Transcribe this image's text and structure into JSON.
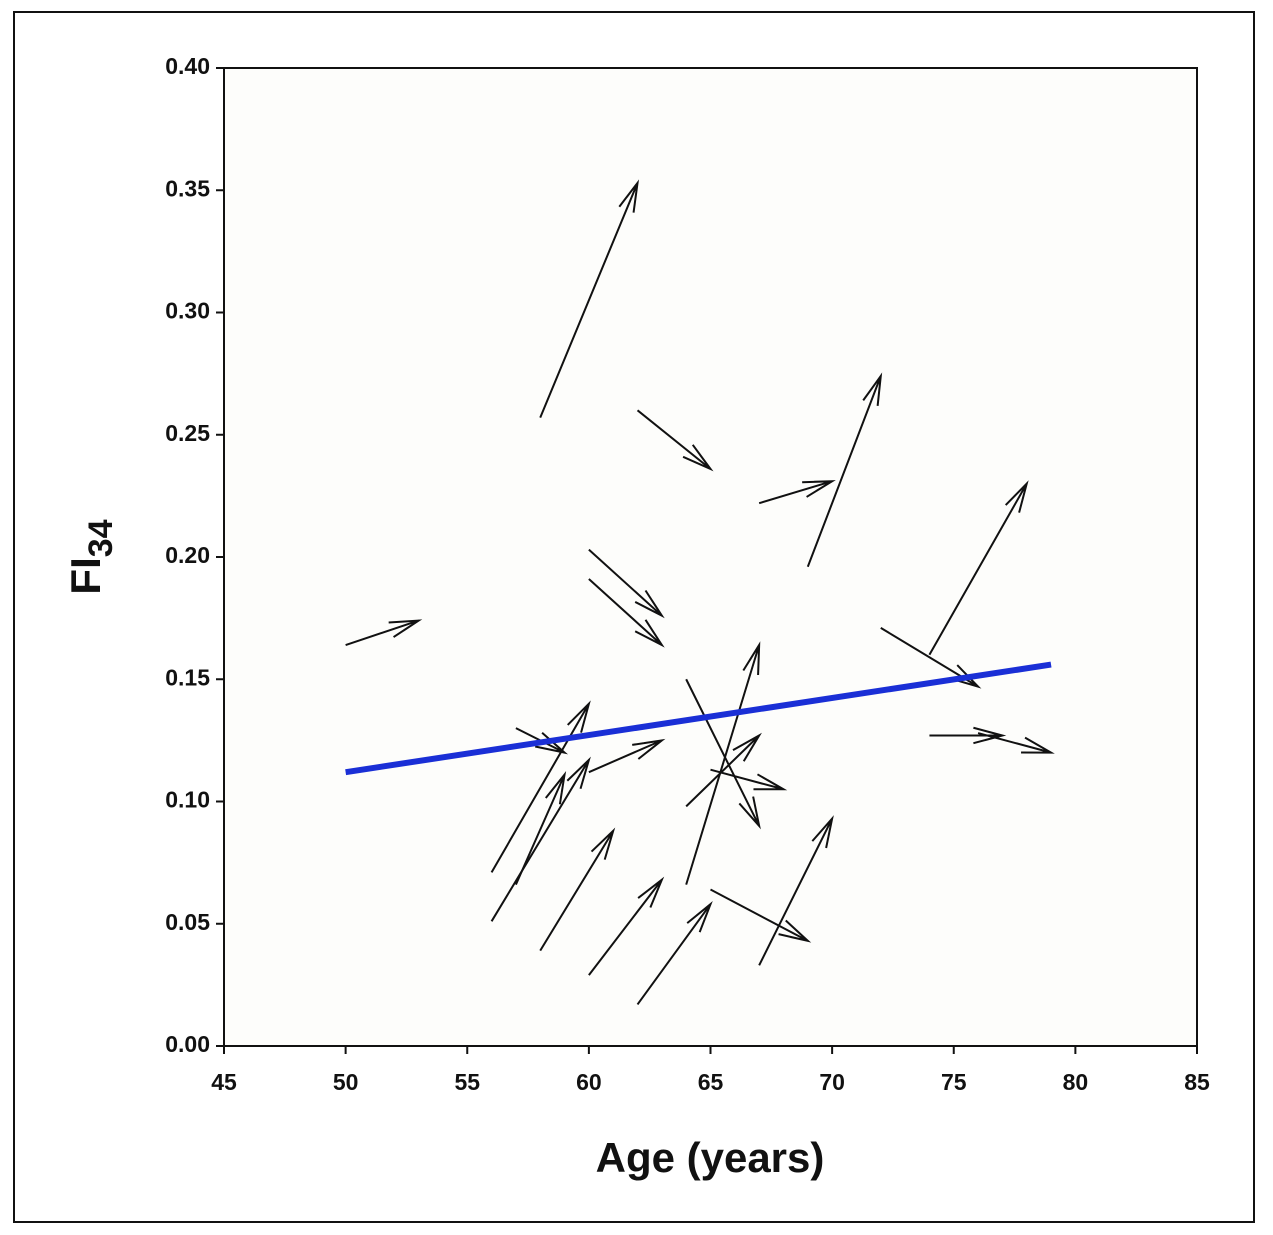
{
  "chart_data": {
    "type": "vector",
    "x_label": "Age (years)",
    "y_label": {
      "text": "FI",
      "subscript": "34"
    },
    "xlim": [
      45,
      85
    ],
    "xticks": [
      45,
      50,
      55,
      60,
      65,
      70,
      75,
      80,
      85
    ],
    "ylim": [
      0,
      0.4
    ],
    "yticks": [
      {
        "value": 0,
        "label": "0.00"
      },
      {
        "value": 0.05,
        "label": "0.05"
      },
      {
        "value": 0.1,
        "label": "0.10"
      },
      {
        "value": 0.15,
        "label": "0.15"
      },
      {
        "value": 0.2,
        "label": "0.20"
      },
      {
        "value": 0.25,
        "label": "0.25"
      },
      {
        "value": 0.3,
        "label": "0.30"
      },
      {
        "value": 0.35,
        "label": "0.35"
      },
      {
        "value": 0.4,
        "label": "0.40"
      }
    ],
    "arrows": {
      "color": "#111111",
      "x_start": [
        50,
        58,
        62,
        67,
        69,
        74,
        72,
        74,
        76,
        60,
        60,
        57,
        56,
        57,
        56,
        58,
        60,
        60,
        62,
        64,
        64,
        64,
        65,
        65,
        67
      ],
      "y_start": [
        0.164,
        0.257,
        0.26,
        0.222,
        0.196,
        0.16,
        0.171,
        0.127,
        0.128,
        0.203,
        0.191,
        0.13,
        0.071,
        0.066,
        0.051,
        0.039,
        0.112,
        0.029,
        0.017,
        0.15,
        0.066,
        0.098,
        0.113,
        0.064,
        0.033
      ],
      "x_end": [
        53,
        62,
        65,
        70,
        72,
        78,
        76,
        77,
        79,
        63,
        63,
        59,
        60,
        59,
        60,
        61,
        63,
        63,
        65,
        67,
        67,
        67,
        68,
        69,
        70
      ],
      "y_end": [
        0.174,
        0.353,
        0.236,
        0.231,
        0.274,
        0.23,
        0.147,
        0.127,
        0.12,
        0.176,
        0.164,
        0.12,
        0.14,
        0.111,
        0.117,
        0.088,
        0.125,
        0.068,
        0.058,
        0.09,
        0.164,
        0.127,
        0.105,
        0.043,
        0.093
      ]
    },
    "fit_line": {
      "color": "#1a2fd6",
      "x": [
        50,
        79
      ],
      "y": [
        0.112,
        0.156
      ]
    }
  }
}
